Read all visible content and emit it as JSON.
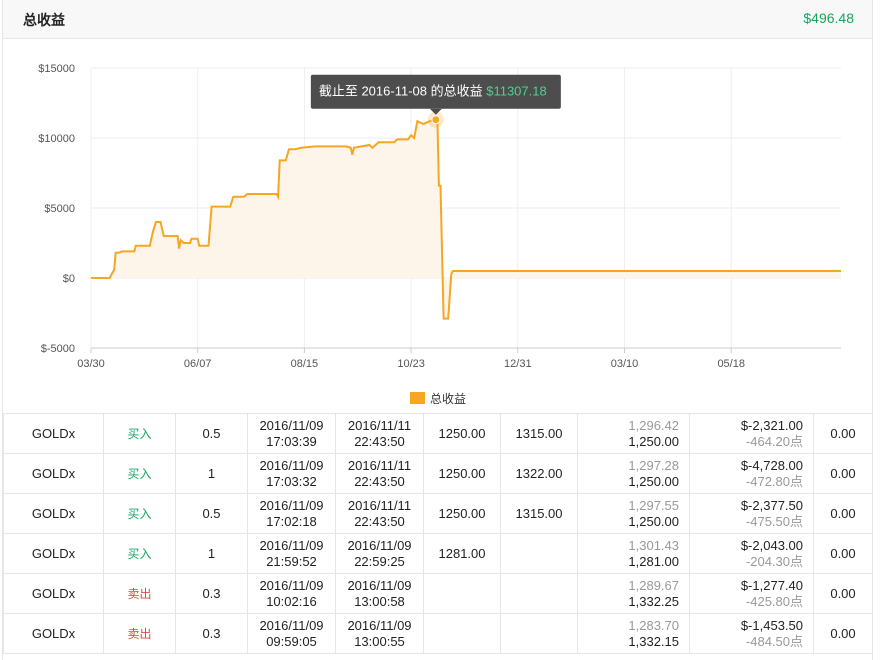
{
  "header": {
    "title": "总收益",
    "total": "$496.48"
  },
  "chart_data": {
    "type": "area",
    "title": "",
    "xlabel": "",
    "ylabel": "",
    "yticks": [
      "$15000",
      "$10000",
      "$5000",
      "$0",
      "$-5000"
    ],
    "ytick_values": [
      15000,
      10000,
      5000,
      0,
      -5000
    ],
    "xticks": [
      "03/30",
      "06/07",
      "08/15",
      "10/23",
      "12/31",
      "03/10",
      "05/18"
    ],
    "xtick_days": [
      0,
      69,
      138,
      207,
      276,
      345,
      414
    ],
    "ylim": [
      -5000,
      15000
    ],
    "xlim": [
      0,
      485
    ],
    "grid": true,
    "legend": {
      "position": "bottom",
      "label": "总收益"
    },
    "colors": {
      "line": "#f5a623",
      "fill": "#fdf5ea",
      "positive": "#19a35f"
    },
    "tooltip": {
      "prefix": "截止至 2016-11-08 的总收益",
      "value": "$11307.18"
    },
    "highlight": {
      "day": 223,
      "value": 11307.18
    },
    "series": [
      {
        "name": "总收益",
        "points": [
          [
            0,
            0
          ],
          [
            12,
            0
          ],
          [
            15,
            600
          ],
          [
            16,
            1800
          ],
          [
            18,
            1800
          ],
          [
            20,
            1900
          ],
          [
            28,
            1900
          ],
          [
            29,
            2300
          ],
          [
            38,
            2300
          ],
          [
            40,
            3300
          ],
          [
            42,
            4000
          ],
          [
            45,
            4000
          ],
          [
            47,
            3000
          ],
          [
            56,
            3000
          ],
          [
            57,
            2100
          ],
          [
            58,
            2700
          ],
          [
            60,
            2500
          ],
          [
            64,
            2500
          ],
          [
            65,
            2800
          ],
          [
            69,
            2800
          ],
          [
            70,
            2300
          ],
          [
            76,
            2300
          ],
          [
            78,
            5100
          ],
          [
            90,
            5100
          ],
          [
            92,
            5800
          ],
          [
            99,
            5800
          ],
          [
            101,
            6000
          ],
          [
            120,
            6000
          ],
          [
            121,
            5800
          ],
          [
            122,
            8400
          ],
          [
            126,
            8400
          ],
          [
            128,
            9200
          ],
          [
            132,
            9200
          ],
          [
            136,
            9300
          ],
          [
            145,
            9400
          ],
          [
            165,
            9400
          ],
          [
            168,
            9300
          ],
          [
            169,
            8800
          ],
          [
            170,
            9300
          ],
          [
            180,
            9500
          ],
          [
            182,
            9300
          ],
          [
            186,
            9700
          ],
          [
            196,
            9700
          ],
          [
            198,
            9900
          ],
          [
            205,
            9900
          ],
          [
            207,
            10200
          ],
          [
            209,
            10000
          ],
          [
            211,
            11200
          ],
          [
            215,
            11000
          ],
          [
            219,
            11200
          ],
          [
            223,
            11307
          ],
          [
            224,
            11300
          ],
          [
            225,
            6600
          ],
          [
            226,
            6600
          ],
          [
            228,
            -2900
          ],
          [
            231,
            -2900
          ],
          [
            233,
            300
          ],
          [
            234,
            500
          ],
          [
            485,
            500
          ]
        ]
      }
    ]
  },
  "trades": [
    {
      "symbol": "GOLDx",
      "side": "买入",
      "side_type": "buy",
      "lots": "0.5",
      "open_date": "2016/11/09",
      "open_time": "17:03:39",
      "close_date": "2016/11/11",
      "close_time": "22:43:50",
      "sl": "1250.00",
      "tp": "1315.00",
      "price_grey": "1,296.42",
      "price": "1,250.00",
      "profit": "$-2,321.00",
      "points": "-464.20点",
      "fee": "0.00"
    },
    {
      "symbol": "GOLDx",
      "side": "买入",
      "side_type": "buy",
      "lots": "1",
      "open_date": "2016/11/09",
      "open_time": "17:03:32",
      "close_date": "2016/11/11",
      "close_time": "22:43:50",
      "sl": "1250.00",
      "tp": "1322.00",
      "price_grey": "1,297.28",
      "price": "1,250.00",
      "profit": "$-4,728.00",
      "points": "-472.80点",
      "fee": "0.00"
    },
    {
      "symbol": "GOLDx",
      "side": "买入",
      "side_type": "buy",
      "lots": "0.5",
      "open_date": "2016/11/09",
      "open_time": "17:02:18",
      "close_date": "2016/11/11",
      "close_time": "22:43:50",
      "sl": "1250.00",
      "tp": "1315.00",
      "price_grey": "1,297.55",
      "price": "1,250.00",
      "profit": "$-2,377.50",
      "points": "-475.50点",
      "fee": "0.00"
    },
    {
      "symbol": "GOLDx",
      "side": "买入",
      "side_type": "buy",
      "lots": "1",
      "open_date": "2016/11/09",
      "open_time": "21:59:52",
      "close_date": "2016/11/09",
      "close_time": "22:59:25",
      "sl": "1281.00",
      "tp": "",
      "price_grey": "1,301.43",
      "price": "1,281.00",
      "profit": "$-2,043.00",
      "points": "-204.30点",
      "fee": "0.00"
    },
    {
      "symbol": "GOLDx",
      "side": "卖出",
      "side_type": "sell",
      "lots": "0.3",
      "open_date": "2016/11/09",
      "open_time": "10:02:16",
      "close_date": "2016/11/09",
      "close_time": "13:00:58",
      "sl": "",
      "tp": "",
      "price_grey": "1,289.67",
      "price": "1,332.25",
      "profit": "$-1,277.40",
      "points": "-425.80点",
      "fee": "0.00"
    },
    {
      "symbol": "GOLDx",
      "side": "卖出",
      "side_type": "sell",
      "lots": "0.3",
      "open_date": "2016/11/09",
      "open_time": "09:59:05",
      "close_date": "2016/11/09",
      "close_time": "13:00:55",
      "sl": "",
      "tp": "",
      "price_grey": "1,283.70",
      "price": "1,332.15",
      "profit": "$-1,453.50",
      "points": "-484.50点",
      "fee": "0.00"
    }
  ]
}
